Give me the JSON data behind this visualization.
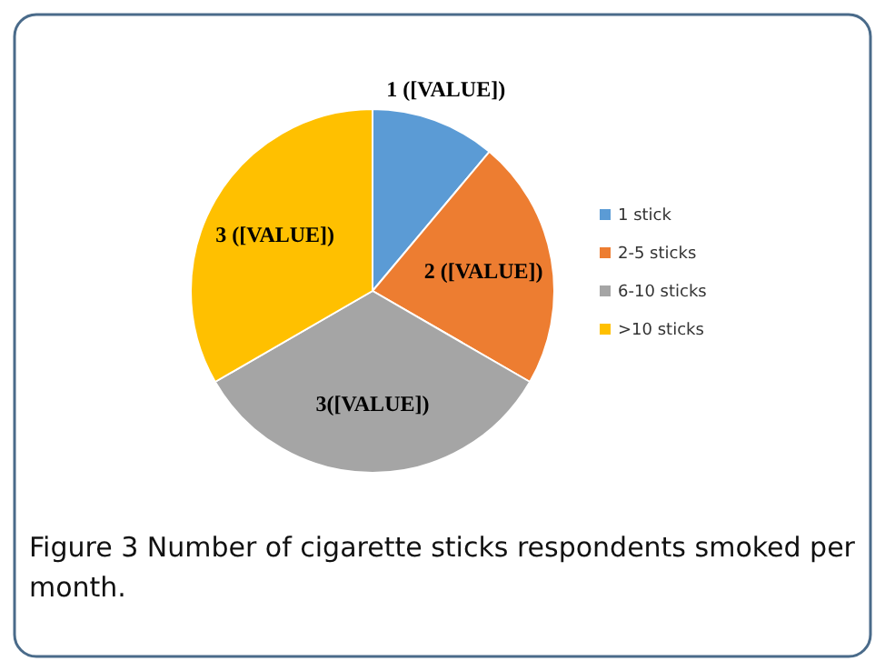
{
  "chart_data": {
    "type": "pie",
    "categories": [
      "1 stick",
      "2-5 sticks",
      "6-10 sticks",
      ">10 sticks"
    ],
    "values": [
      1,
      2,
      3,
      3
    ],
    "value_labels": [
      "1 ([VALUE])",
      "2 ([VALUE])",
      "3([VALUE])",
      "3 ([VALUE])"
    ],
    "colors": [
      "#5b9bd5",
      "#ed7d31",
      "#a5a5a5",
      "#ffc000"
    ],
    "legend": "right",
    "annotations": [
      "Figure 3 Number of cigarette sticks respondents smoked per month."
    ]
  }
}
